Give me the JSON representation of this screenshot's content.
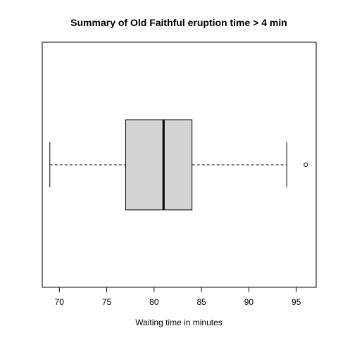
{
  "chart_data": {
    "type": "boxplot",
    "orientation": "horizontal",
    "title": "Summary of Old Faithful eruption time > 4 min",
    "xlabel": "Waiting time in minutes",
    "ylabel": "",
    "xlim": [
      68.2,
      97.1
    ],
    "x_ticks": [
      70,
      75,
      80,
      85,
      90,
      95
    ],
    "x_tick_labels": [
      "70",
      "75",
      "80",
      "85",
      "90",
      "95"
    ],
    "grid": false,
    "box": {
      "whisker_low": 69,
      "q1": 77,
      "median": 81,
      "q3": 84,
      "whisker_high": 94,
      "outliers": [
        96
      ]
    },
    "colors": {
      "box_fill": "#d3d3d3",
      "lines": "#000000",
      "background": "#ffffff"
    }
  }
}
